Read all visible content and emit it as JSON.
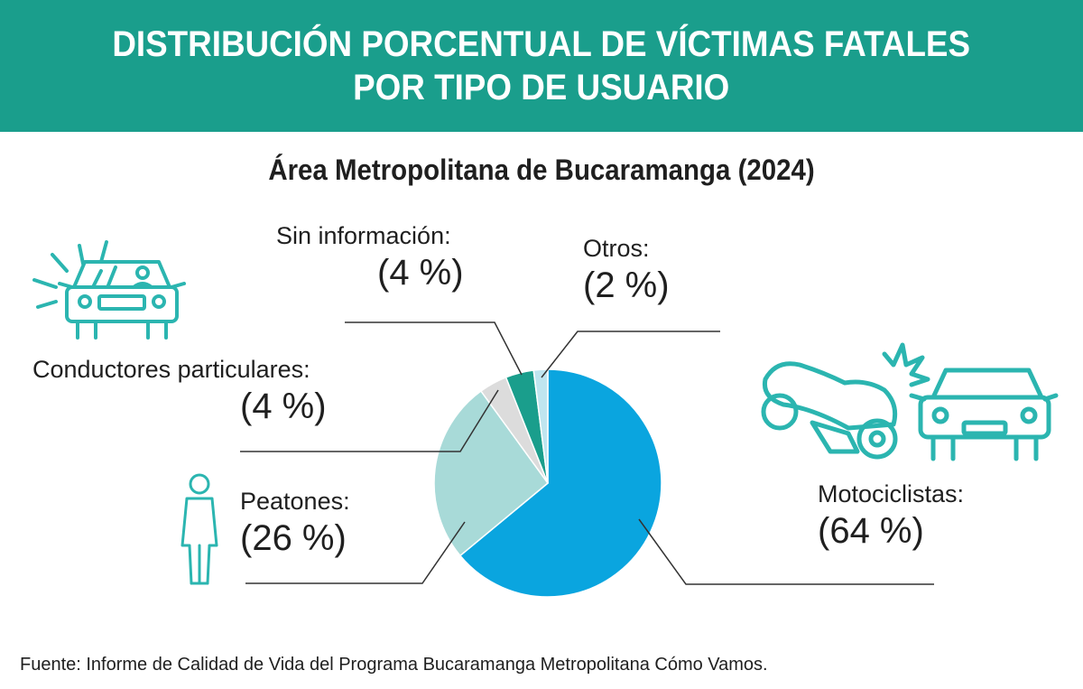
{
  "header": {
    "title_line1": "DISTRIBUCIÓN PORCENTUAL DE VÍCTIMAS FATALES",
    "title_line2": "POR TIPO DE USUARIO"
  },
  "subtitle": "Área Metropolitana de Bucaramanga (2024)",
  "source": "Fuente: Informe de Calidad de Vida del Programa Bucaramanga Metropolitana Cómo Vamos.",
  "colors": {
    "banner": "#1a9e8c",
    "motociclistas": "#0aa5df",
    "peatones": "#a8dad8",
    "conductores": "#dcdcdc",
    "sin_informacion": "#1a9e8c",
    "otros": "#bfe5ef",
    "icons": "#2bb5b0",
    "leader": "#333333"
  },
  "icons": [
    "car-front-alert-icon",
    "pedestrian-icon",
    "motorcycle-car-crash-icon"
  ],
  "chart_data": {
    "type": "pie",
    "title": "DISTRIBUCIÓN PORCENTUAL DE VÍCTIMAS FATALES POR TIPO DE USUARIO",
    "subtitle": "Área Metropolitana de Bucaramanga (2024)",
    "slices": [
      {
        "label": "Motociclistas:",
        "display": "(64 %)",
        "value": 64,
        "color": "#0aa5df"
      },
      {
        "label": "Peatones:",
        "display": "(26 %)",
        "value": 26,
        "color": "#a8dad8"
      },
      {
        "label": "Conductores particulares:",
        "display": "(4 %)",
        "value": 4,
        "color": "#dcdcdc"
      },
      {
        "label": "Sin información:",
        "display": "(4 %)",
        "value": 4,
        "color": "#1a9e8c"
      },
      {
        "label": "Otros:",
        "display": "(2 %)",
        "value": 2,
        "color": "#bfe5ef"
      }
    ]
  }
}
